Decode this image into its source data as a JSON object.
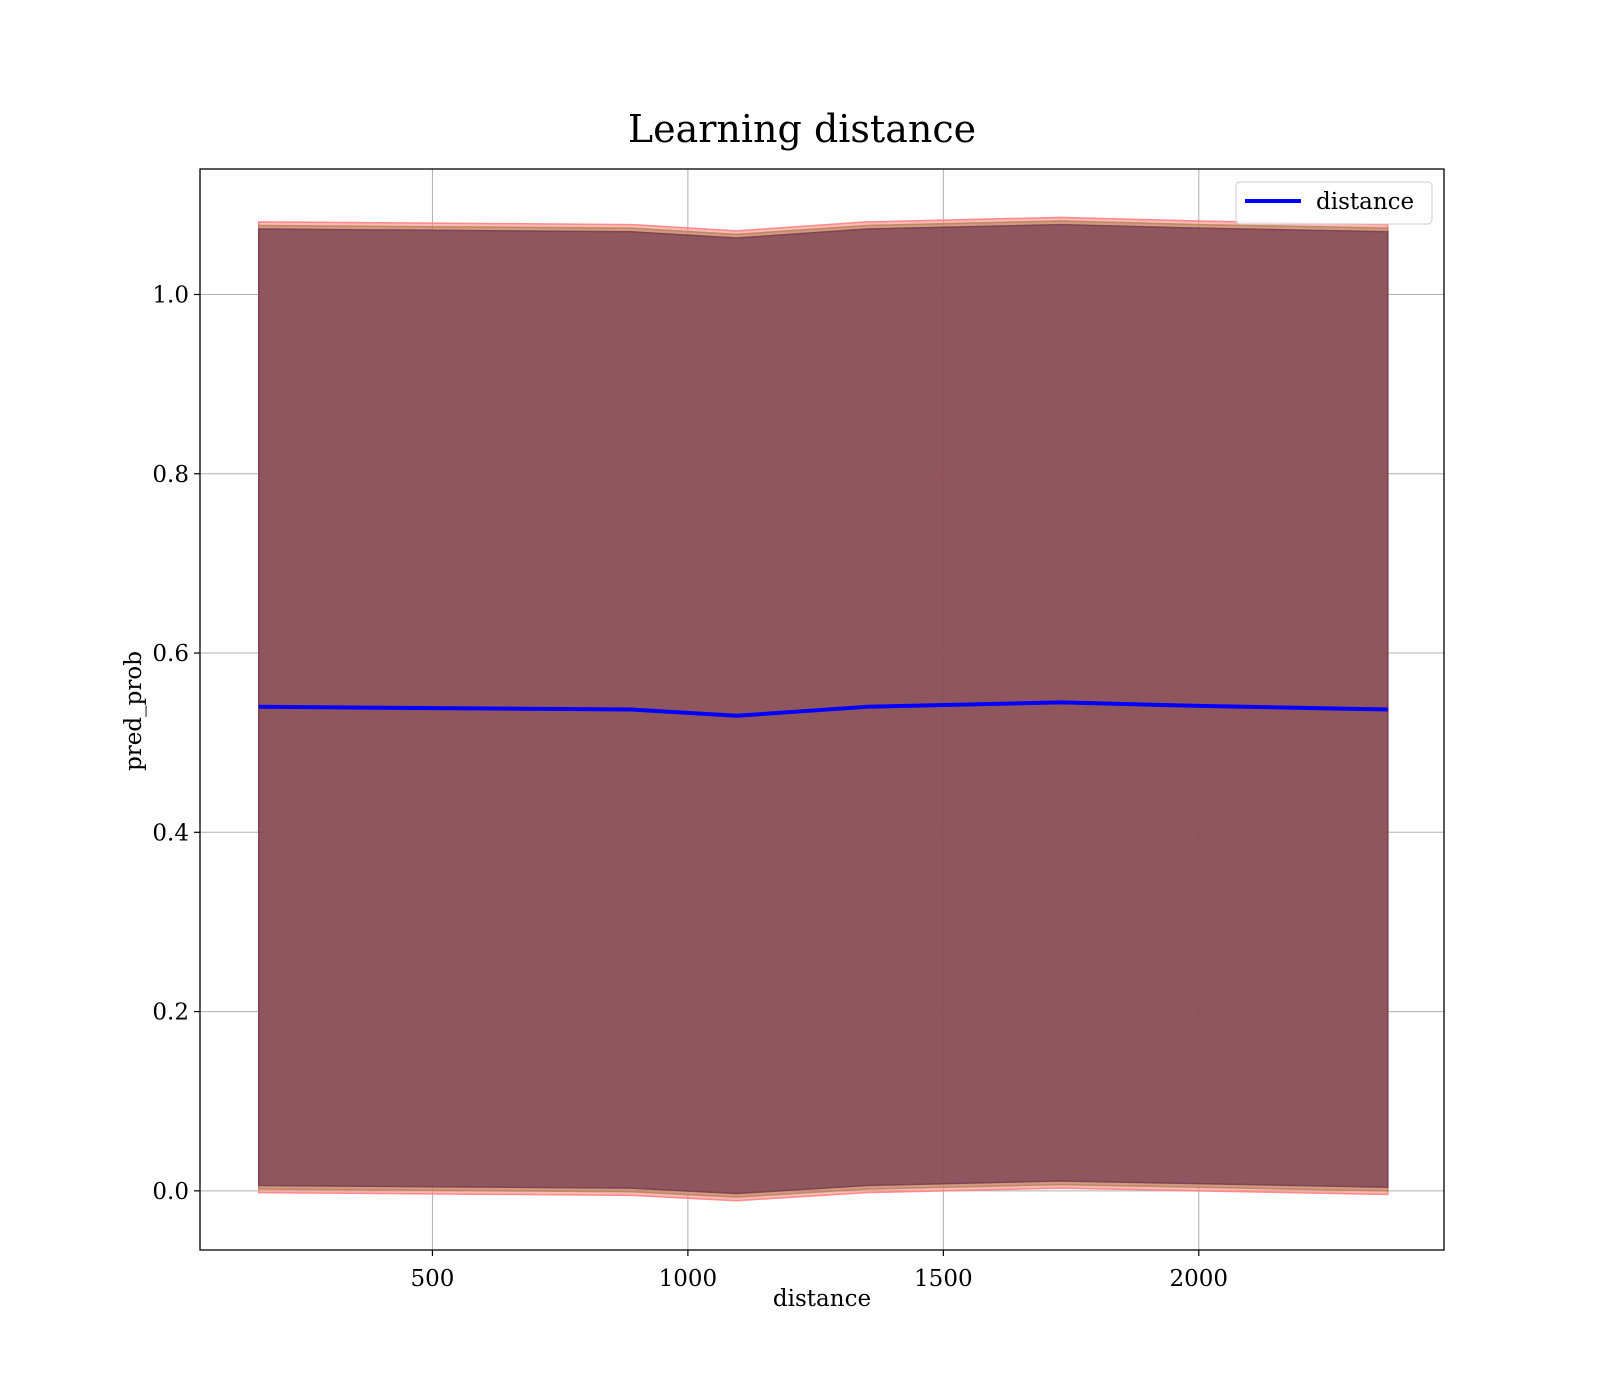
{
  "chart_data": {
    "type": "line",
    "title": "Learning distance",
    "xlabel": "distance",
    "ylabel": "pred_prob",
    "xlim": [
      45,
      2480
    ],
    "ylim": [
      -0.066,
      1.14
    ],
    "xticks": [
      500,
      1000,
      1500,
      2000
    ],
    "yticks": [
      0.0,
      0.2,
      0.4,
      0.6,
      0.8,
      1.0
    ],
    "xtick_labels": [
      "500",
      "1000",
      "1500",
      "2000"
    ],
    "ytick_labels": [
      "0.0",
      "0.2",
      "0.4",
      "0.6",
      "0.8",
      "1.0"
    ],
    "grid": true,
    "legend": {
      "position": "top-right",
      "entries": [
        "distance"
      ]
    },
    "x": [
      160,
      890,
      1095,
      1350,
      1730,
      2000,
      2370
    ],
    "series": [
      {
        "name": "distance",
        "color": "#0000ff",
        "values": [
          0.54,
          0.537,
          0.53,
          0.54,
          0.545,
          0.541,
          0.537
        ]
      }
    ],
    "bands": [
      {
        "color": "#ff7f7f",
        "opacity": 0.55,
        "lower": [
          -0.002,
          -0.005,
          -0.011,
          -0.002,
          0.003,
          0.0,
          -0.004
        ],
        "upper": [
          1.081,
          1.078,
          1.071,
          1.081,
          1.086,
          1.082,
          1.078
        ]
      },
      {
        "color": "#b8865b",
        "opacity": 0.6,
        "lower": [
          0.002,
          -0.001,
          -0.007,
          0.002,
          0.007,
          0.004,
          0.0
        ],
        "upper": [
          1.077,
          1.074,
          1.067,
          1.077,
          1.082,
          1.078,
          1.074
        ]
      },
      {
        "color": "#7a3f52",
        "opacity": 0.75,
        "lower": [
          0.006,
          0.003,
          -0.003,
          0.006,
          0.011,
          0.008,
          0.004
        ],
        "upper": [
          1.073,
          1.07,
          1.063,
          1.073,
          1.078,
          1.074,
          1.07
        ]
      }
    ]
  }
}
